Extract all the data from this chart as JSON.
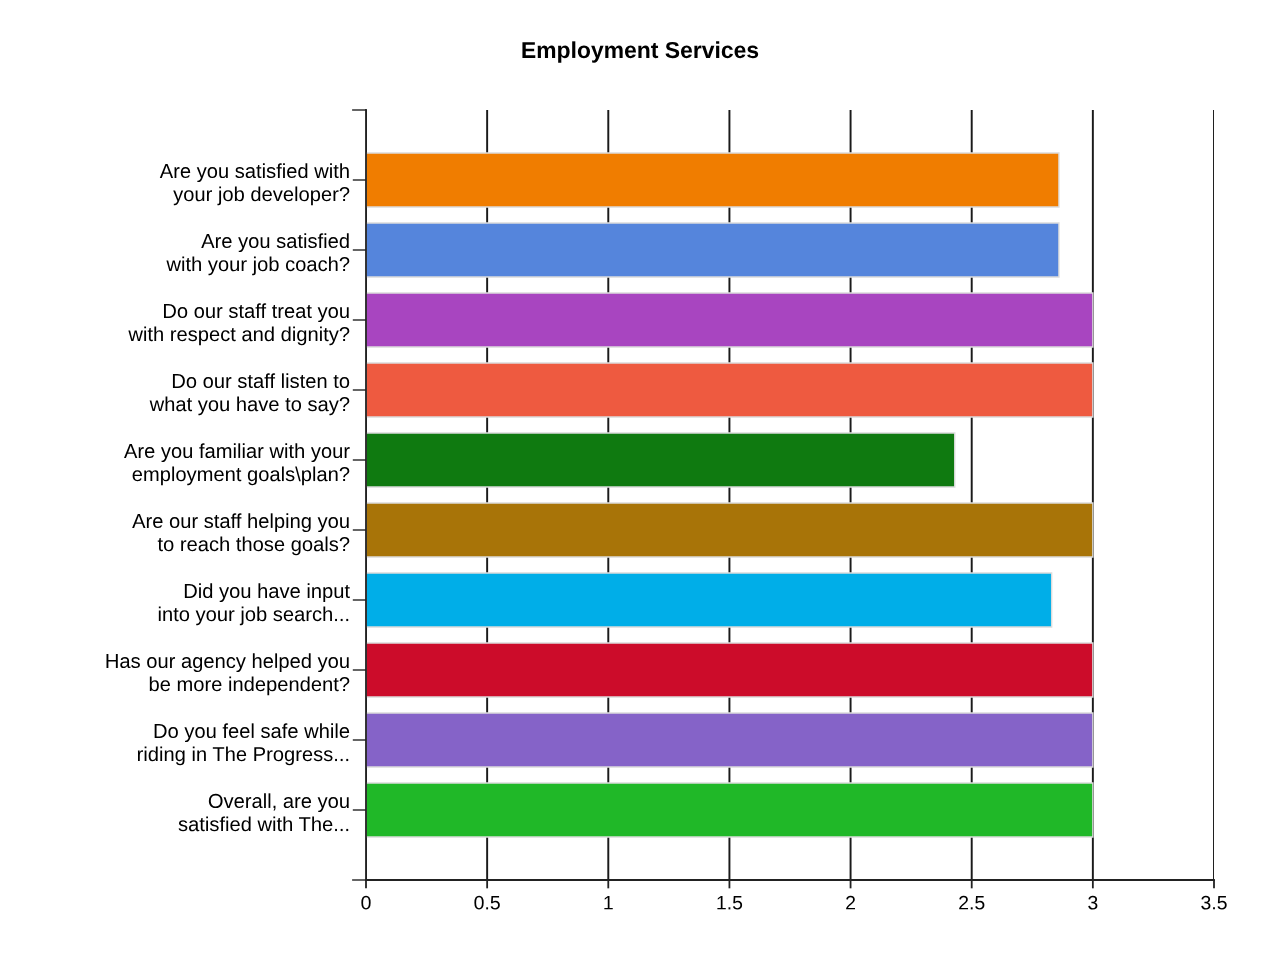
{
  "chart_data": {
    "type": "bar",
    "orientation": "horizontal",
    "title": "Employment Services",
    "categories": [
      "Are you satisfied with\nyour job developer?",
      "Are you satisfied\nwith your job coach?",
      "Do our staff treat you\nwith respect and dignity?",
      "Do our staff listen to\nwhat you have to say?",
      "Are you familiar with your\nemployment goals\\plan?",
      "Are our staff helping you\nto reach those goals?",
      "Did you have input\ninto your job search...",
      "Has our agency helped you\nbe more independent?",
      "Do you feel safe while\nriding in The Progress...",
      "Overall, are you\nsatisfied with The..."
    ],
    "values": [
      2.86,
      2.86,
      3,
      3,
      2.43,
      3,
      2.83,
      3,
      3,
      3
    ],
    "colors": [
      "#f07d00",
      "#5585dc",
      "#a845c0",
      "#ee5a40",
      "#0f7a10",
      "#a87408",
      "#00aee8",
      "#cc0c2a",
      "#8563c8",
      "#20b828"
    ],
    "xlim": [
      0,
      3.5
    ],
    "xticks": [
      0,
      0.5,
      1,
      1.5,
      2,
      2.5,
      3,
      3.5
    ],
    "grid": "x"
  }
}
